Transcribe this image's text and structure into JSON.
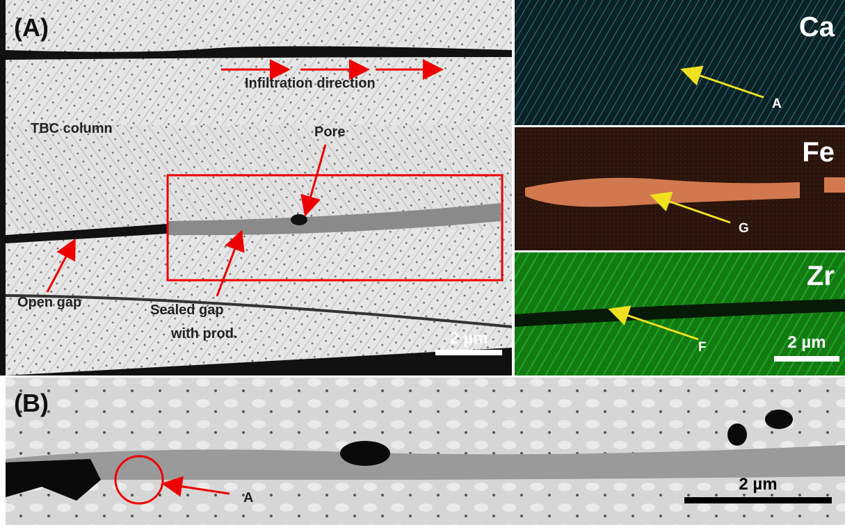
{
  "panel_a": {
    "label": "(A)",
    "sem": {
      "infiltration": "Infiltration direction",
      "column": "TBC column",
      "pore": "Pore",
      "open_gap": "Open gap",
      "sealed_gap": [
        "Sealed gap",
        "with prod."
      ],
      "scale_bar": "2 µm"
    },
    "maps": [
      {
        "element": "Ca",
        "marker": "A"
      },
      {
        "element": "Fe",
        "marker": "G"
      },
      {
        "element": "Zr",
        "marker": "F"
      }
    ],
    "maps_scale_bar": "2 µm"
  },
  "panel_b": {
    "label": "(B)",
    "marker": "A",
    "scale_bar": "2 µm"
  }
}
